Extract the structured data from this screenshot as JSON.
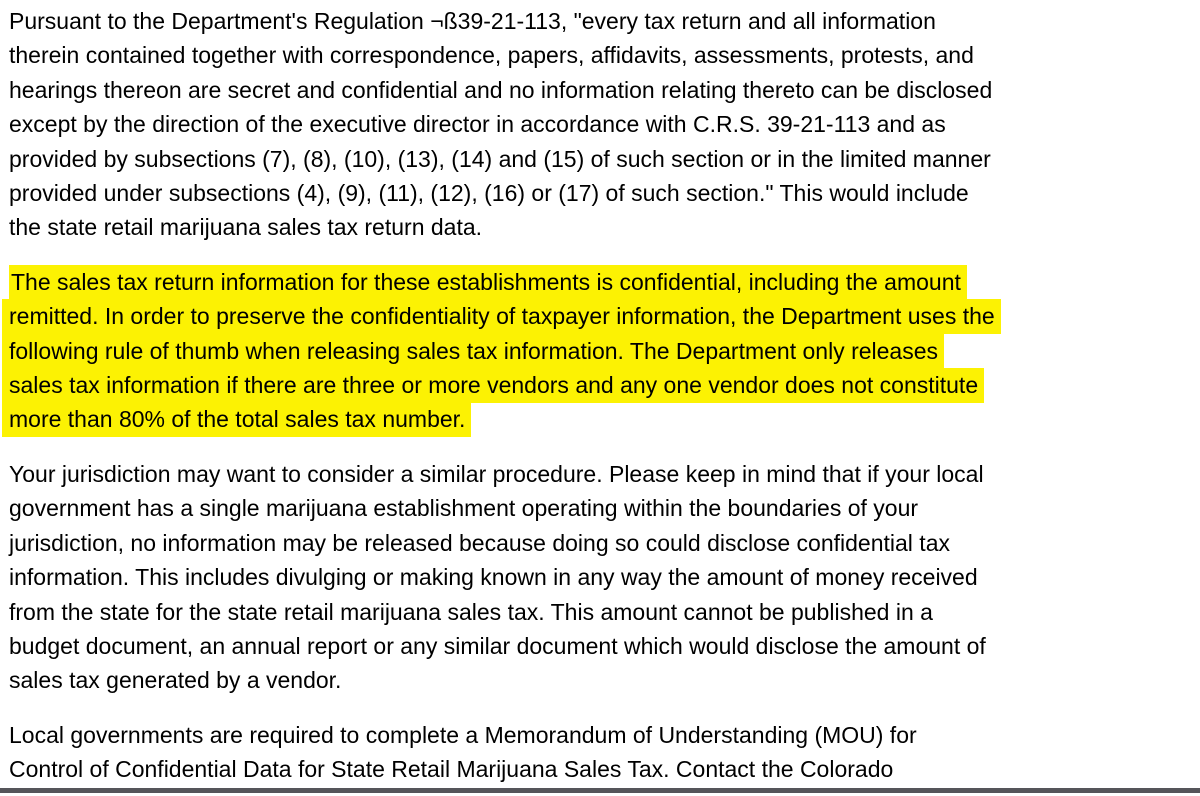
{
  "page": {
    "background_color": "#ffffff",
    "text_color": "#000000",
    "highlight_color": "#fcf203",
    "bottom_bar_color": "#55555a"
  },
  "document": {
    "paragraphs": [
      {
        "highlighted": false,
        "lines": [
          "Pursuant to the Department's Regulation ¬ß39-21-113, \"every tax return and all information",
          "therein contained together with correspondence, papers, affidavits, assessments, protests, and",
          "hearings thereon are secret and confidential and no information relating thereto can be disclosed",
          "except by the direction of the executive director in accordance with C.R.S. 39-21-113 and as",
          "provided by subsections (7), (8), (10), (13), (14) and (15) of such section or in the limited manner",
          "provided under subsections (4), (9), (11), (12), (16) or (17) of such section.\" This would include",
          "the state retail marijuana sales tax return data."
        ]
      },
      {
        "highlighted": true,
        "lines": [
          "The sales tax return information for these establishments is confidential, including the amount",
          "remitted. In order to preserve the confidentiality of taxpayer information, the Department uses the",
          "following rule of thumb when releasing sales tax information. The Department only releases",
          "sales tax information if there are three or more vendors and any one vendor does not constitute",
          "more than 80% of the total sales tax number."
        ]
      },
      {
        "highlighted": false,
        "lines": [
          "Your jurisdiction may want to consider a similar procedure. Please keep in mind that if your local",
          "government has a single marijuana establishment operating within the boundaries of your",
          "jurisdiction, no information may be released because doing so could disclose confidential tax",
          "information. This includes divulging or making known in any way the amount of money received",
          "from the state for the state retail marijuana sales tax. This amount cannot be published in a",
          "budget document, an annual report or any similar document which would disclose the amount of",
          "sales tax generated by a vendor."
        ]
      },
      {
        "highlighted": false,
        "lines": [
          "Local governments are required to complete a Memorandum of Understanding (MOU) for",
          "Control of Confidential Data for State Retail Marijuana Sales Tax. Contact the Colorado"
        ]
      }
    ]
  }
}
